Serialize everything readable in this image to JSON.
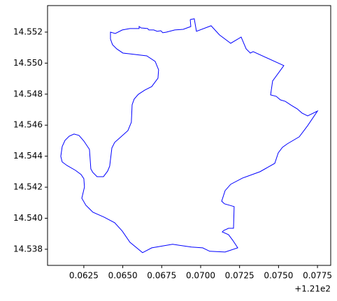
{
  "chart_data": {
    "type": "line",
    "color": "#0000ff",
    "x_offset": "+1.21e2",
    "xlim": [
      121.06017,
      121.07835
    ],
    "ylim": [
      14.53696,
      14.55371
    ],
    "xticks": [
      {
        "value": 121.0625,
        "label": "0.0625"
      },
      {
        "value": 121.065,
        "label": "0.0650"
      },
      {
        "value": 121.0675,
        "label": "0.0675"
      },
      {
        "value": 121.07,
        "label": "0.0700"
      },
      {
        "value": 121.0725,
        "label": "0.0725"
      },
      {
        "value": 121.075,
        "label": "0.0750"
      },
      {
        "value": 121.0775,
        "label": "0.0775"
      }
    ],
    "yticks": [
      14.538,
      {
        "value": 14.54,
        "label": "14.540"
      },
      14.542,
      14.544,
      14.546,
      14.548,
      {
        "value": 14.55,
        "label": "14.550"
      },
      14.552
    ],
    "x": [
      121.06933,
      121.06959,
      121.06973,
      121.07067,
      121.07121,
      121.07193,
      121.0726,
      121.07292,
      121.07319,
      121.07337,
      121.07534,
      121.07462,
      121.07449,
      121.07485,
      121.07512,
      121.07543,
      121.07584,
      121.0762,
      121.07651,
      121.07687,
      121.0775,
      121.07687,
      121.07633,
      121.07557,
      121.07525,
      121.07498,
      121.07476,
      121.07381,
      121.07269,
      121.07193,
      121.07157,
      121.07135,
      121.07153,
      121.07215,
      121.07211,
      121.07179,
      121.07148,
      121.07139,
      121.07179,
      121.07206,
      121.07238,
      121.07157,
      121.07058,
      121.07013,
      121.06941,
      121.0682,
      121.06686,
      121.06627,
      121.06546,
      121.06497,
      121.06448,
      121.0638,
      121.06308,
      121.06263,
      121.06237,
      121.06254,
      121.0625,
      121.06232,
      121.06196,
      121.06142,
      121.06111,
      121.06102,
      121.06111,
      121.06129,
      121.06156,
      121.06187,
      121.06219,
      121.0625,
      121.06286,
      121.06295,
      121.06308,
      121.06335,
      121.06376,
      121.06403,
      121.06416,
      121.0643,
      121.06448,
      121.06483,
      121.06533,
      121.06555,
      121.0656,
      121.06573,
      121.066,
      121.06641,
      121.06686,
      121.06726,
      121.0673,
      121.06708,
      121.06654,
      121.06546,
      121.06501,
      121.06461,
      121.06434,
      121.06421,
      121.06421,
      121.06452,
      121.06497,
      121.06546,
      121.06605,
      121.06605,
      121.06618,
      121.06659,
      121.06668,
      121.06699,
      121.06721,
      121.06744,
      121.06757,
      121.0678,
      121.06834,
      121.06888,
      121.06937,
      121.06933
    ],
    "values": [
      14.55281,
      14.55286,
      14.55205,
      14.55241,
      14.55182,
      14.55128,
      14.55168,
      14.55092,
      14.55065,
      14.55074,
      14.54984,
      14.54885,
      14.54795,
      14.54786,
      14.54763,
      14.54754,
      14.54727,
      14.54705,
      14.54678,
      14.5466,
      14.54691,
      14.54597,
      14.54525,
      14.5448,
      14.54457,
      14.54421,
      14.54354,
      14.543,
      14.54259,
      14.54219,
      14.54178,
      14.5411,
      14.54093,
      14.54075,
      14.53935,
      14.53935,
      14.53921,
      14.53912,
      14.53894,
      14.53858,
      14.53809,
      14.53782,
      14.53787,
      14.53809,
      14.53814,
      14.53832,
      14.53809,
      14.53778,
      14.53845,
      14.53917,
      14.53971,
      14.54007,
      14.54039,
      14.54084,
      14.54129,
      14.54201,
      14.54255,
      14.54282,
      14.54309,
      14.5434,
      14.54363,
      14.54399,
      14.54462,
      14.54502,
      14.54529,
      14.54543,
      14.54534,
      14.54498,
      14.54444,
      14.54318,
      14.54295,
      14.54268,
      14.54268,
      14.54304,
      14.54336,
      14.54453,
      14.54489,
      14.5452,
      14.54565,
      14.54619,
      14.54732,
      14.54768,
      14.54799,
      14.54826,
      14.54849,
      14.54903,
      14.54957,
      14.55011,
      14.55047,
      14.5506,
      14.55065,
      14.55092,
      14.55119,
      14.55155,
      14.552,
      14.55191,
      14.55214,
      14.55223,
      14.55223,
      14.55236,
      14.55227,
      14.55223,
      14.55214,
      14.55214,
      14.55205,
      14.55209,
      14.55196,
      14.552,
      14.55214,
      14.55218,
      14.55236,
      14.55281
    ]
  }
}
